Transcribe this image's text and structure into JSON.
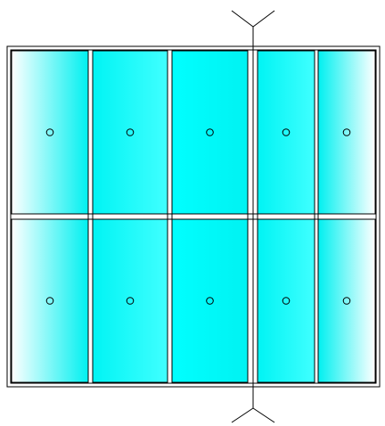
{
  "diagram": {
    "kind": "window-panel-elevation",
    "columns": 5,
    "rows": 2,
    "section_cut_after_column": 3,
    "colors": {
      "frame_stroke": "#000000",
      "background": "#ffffff",
      "glass_light": "#ffffff",
      "glass_mid": "#00f0f0",
      "glass_solid": "#00ffff"
    },
    "panel_shading": [
      "fade-right",
      "cyan-soft",
      "cyan-solid",
      "cyan-soft",
      "fade-left"
    ],
    "handle_icon": "circle-handle-icon",
    "section_marker_icon": "section-arrow-icon"
  }
}
